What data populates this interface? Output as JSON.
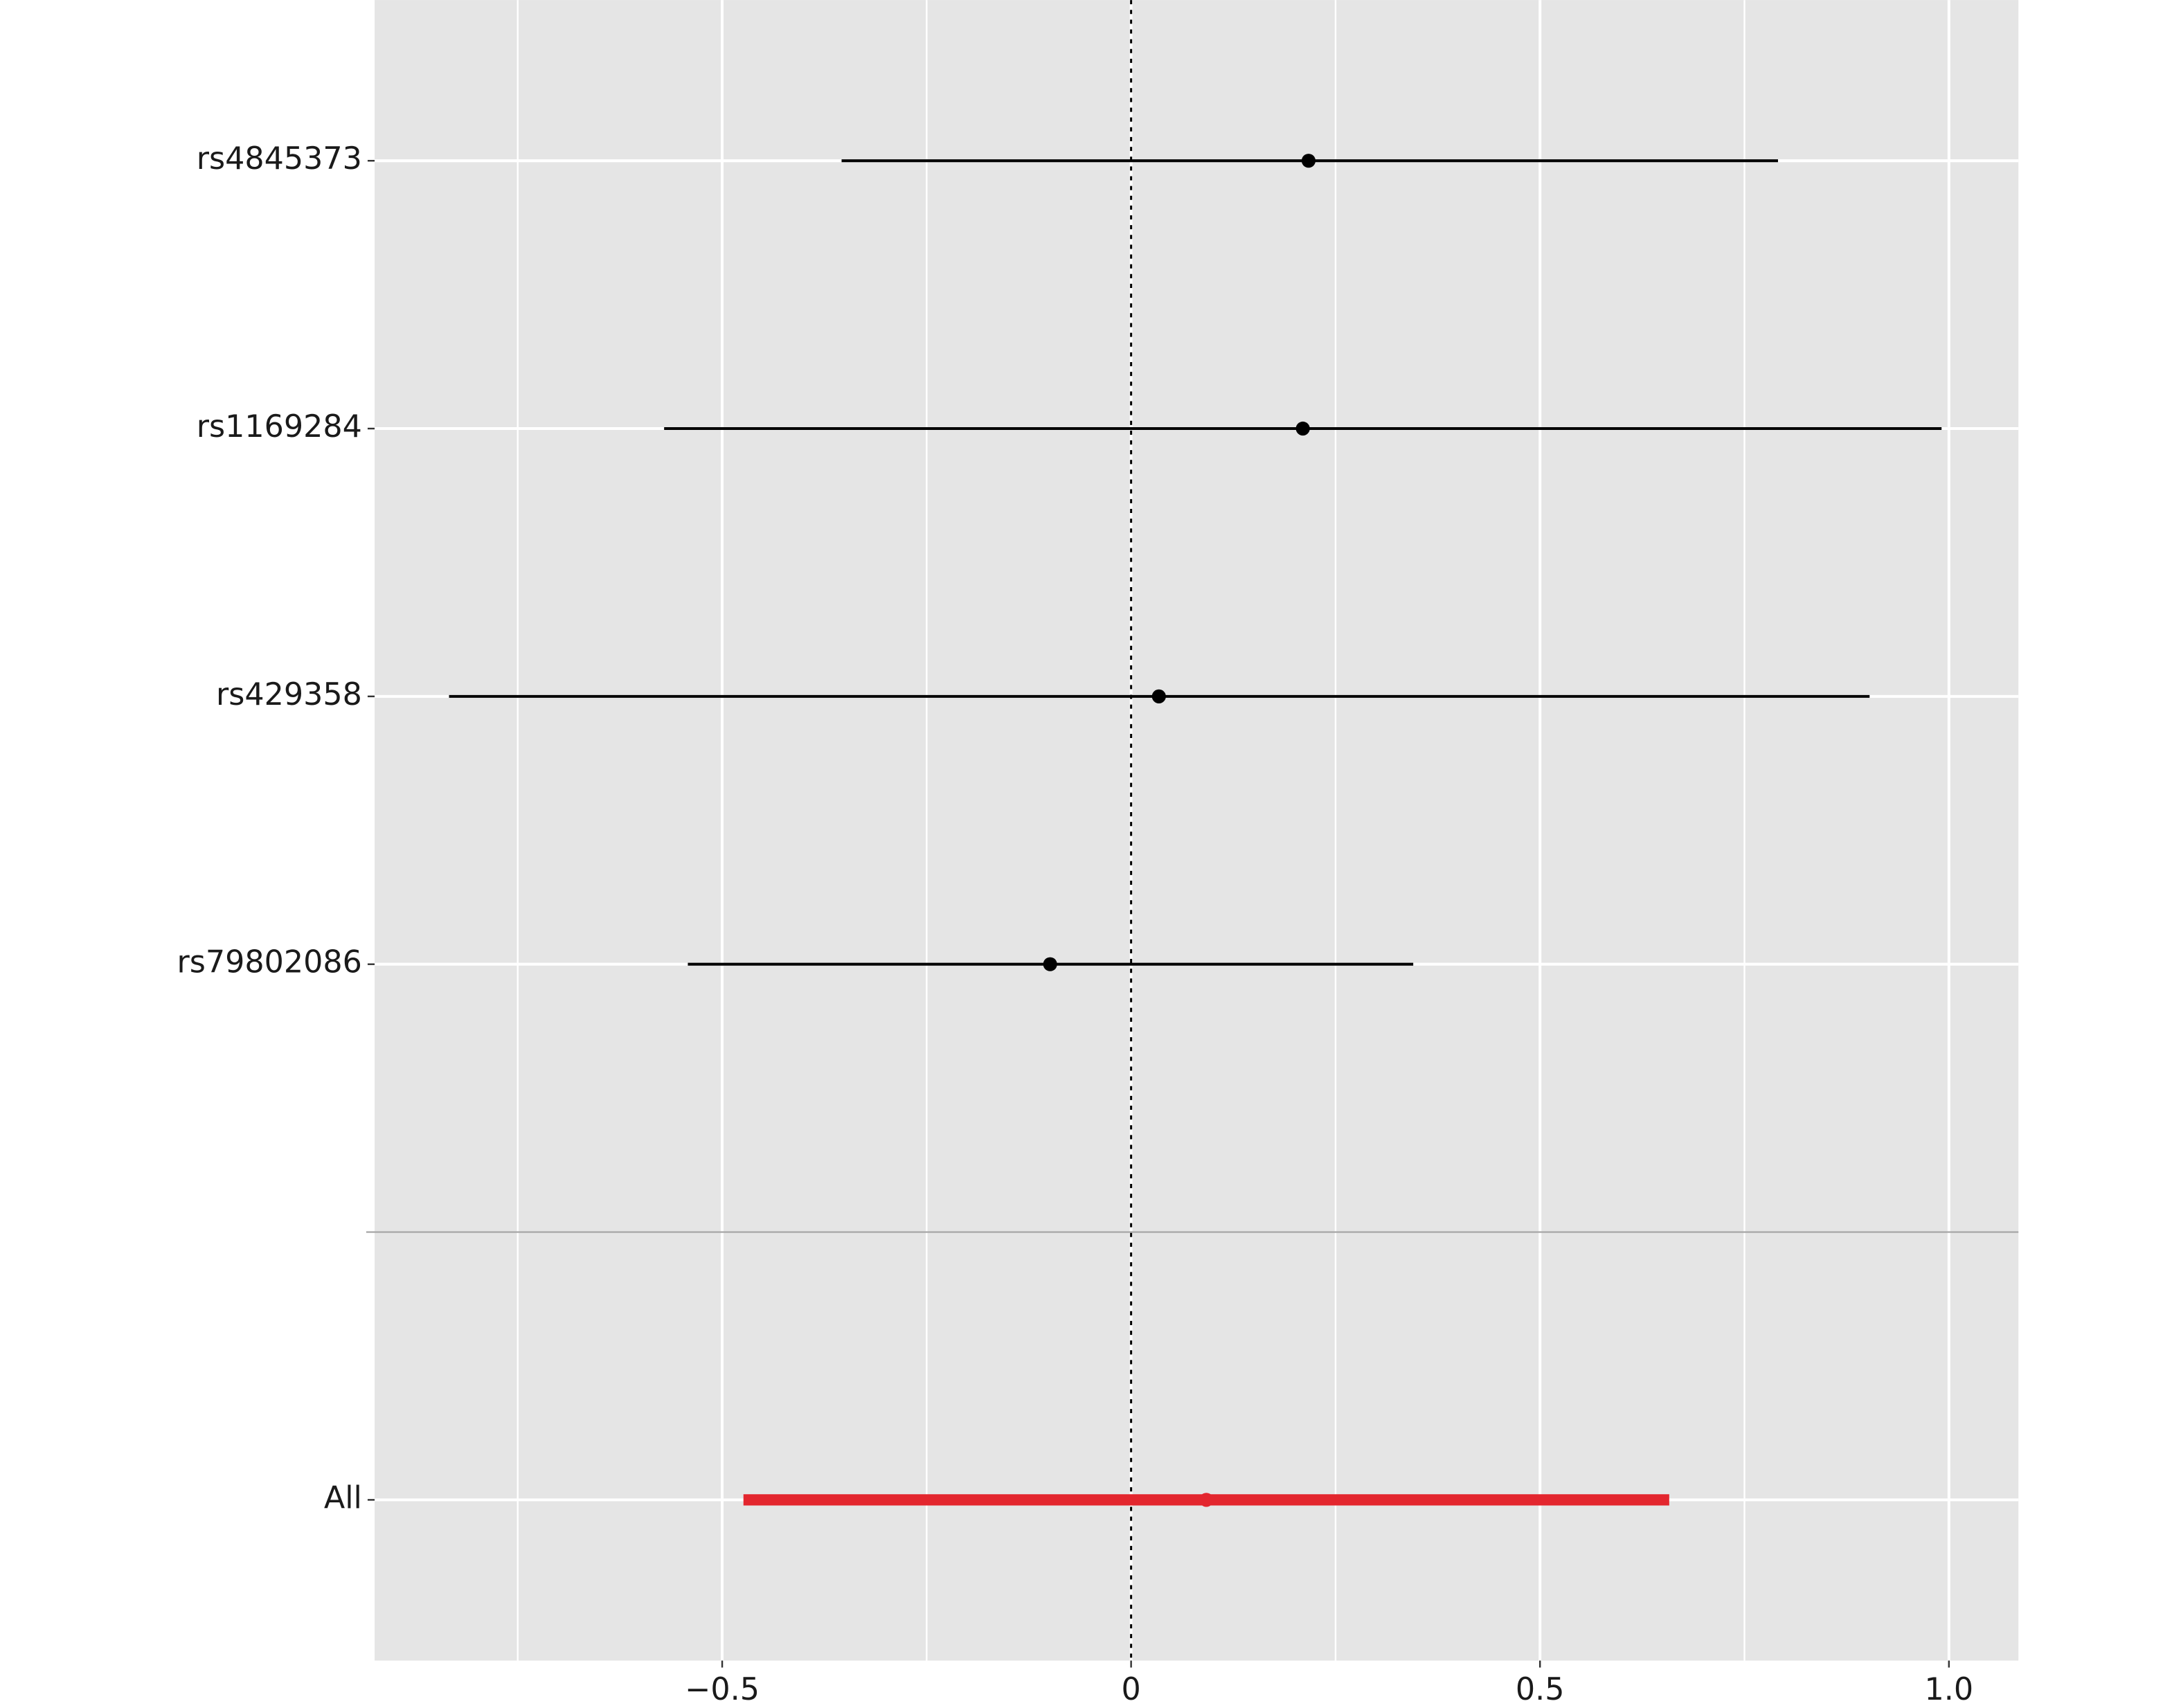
{
  "chart_data": {
    "type": "forest",
    "categories": [
      "rs4845373",
      "rs1169284",
      "rs429358",
      "rs79802086",
      null,
      "All"
    ],
    "series": [
      {
        "color": "#000000",
        "values": [
          0.217,
          0.21,
          0.034,
          -0.099,
          null,
          null
        ],
        "lower": [
          -0.354,
          -0.571,
          -0.834,
          -0.542,
          null,
          null
        ],
        "upper": [
          0.791,
          0.991,
          0.903,
          0.345,
          null,
          null
        ]
      },
      {
        "color": "#e3262e",
        "values": [
          null,
          null,
          null,
          null,
          null,
          0.092
        ],
        "lower": [
          null,
          null,
          null,
          null,
          null,
          -0.474
        ],
        "upper": [
          null,
          null,
          null,
          null,
          null,
          0.658
        ]
      }
    ],
    "xlim": [
      -0.925,
      1.085
    ],
    "xticks": [
      {
        "value": -0.5,
        "label": "−0.5"
      },
      0,
      0.5,
      {
        "value": 1,
        "label": "1.0"
      }
    ],
    "minor_xticks": [
      -0.75,
      -0.25,
      0.25,
      0.75
    ],
    "reference_line": 0,
    "grid": true
  }
}
